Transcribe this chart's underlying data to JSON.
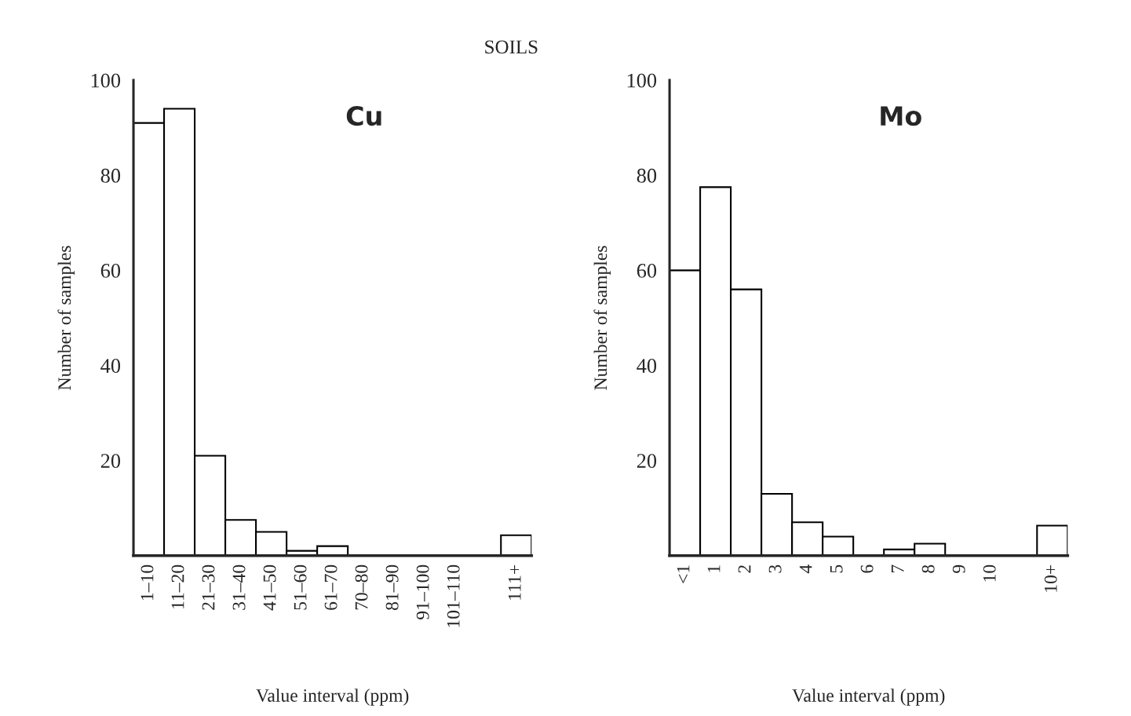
{
  "chart_data": [
    {
      "type": "bar",
      "title": "Cu",
      "xlabel": "Value interval (ppm)",
      "ylabel": "Number of samples",
      "annotations": [
        "SOILS"
      ],
      "categories": [
        "1–10",
        "11–20",
        "21–30",
        "31–40",
        "41–50",
        "51–60",
        "61–70",
        "70–80",
        "81–90",
        "91–100",
        "101–110",
        null,
        "111+"
      ],
      "values": [
        91,
        94,
        21,
        7.5,
        5,
        1,
        2,
        0,
        0,
        0,
        0,
        null,
        4.3
      ],
      "color": "#000000",
      "ylim": [
        0,
        100
      ],
      "yticks": [
        20,
        40,
        60,
        80,
        100
      ],
      "grid": false
    },
    {
      "type": "bar",
      "title": "Mo",
      "xlabel": "Value interval (ppm)",
      "ylabel": "Number of samples",
      "categories": [
        "<1",
        "1",
        "2",
        "3",
        "4",
        "5",
        "6",
        "7",
        "8",
        "9",
        "10",
        null,
        "10+"
      ],
      "values": [
        60,
        77.5,
        56,
        13,
        7,
        4,
        0,
        1.3,
        2.5,
        0,
        0,
        null,
        6.3
      ],
      "color": "#000000",
      "ylim": [
        0,
        100
      ],
      "yticks": [
        20,
        40,
        60,
        80,
        100
      ],
      "grid": false
    }
  ]
}
